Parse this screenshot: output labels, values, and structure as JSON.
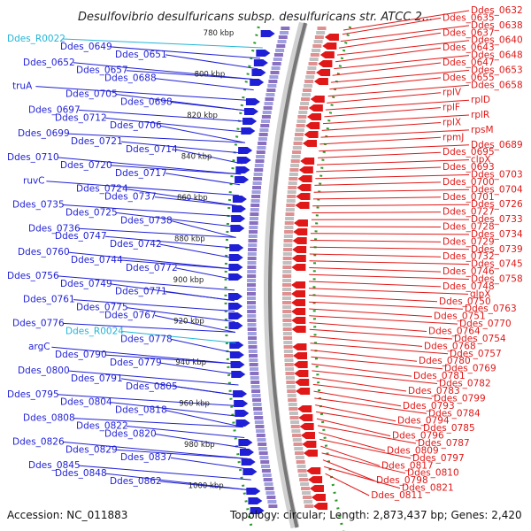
{
  "title": "Desulfovibrio desulfuricans subsp. desulfuricans str. ATCC 2...",
  "footer": {
    "accession": "Accession: NC_011883",
    "summary": "Topology: circular; Length: 2,873,437 bp; Genes: 2,420"
  },
  "colors": {
    "forward": "#1f1fd6",
    "reverse": "#e01818",
    "rna": "#22b5d8",
    "ticks": "#2a9a2a"
  },
  "kbp_ticks": [
    "780 kbp",
    "800 kbp",
    "820 kbp",
    "840 kbp",
    "860 kbp",
    "880 kbp",
    "900 kbp",
    "920 kbp",
    "940 kbp",
    "960 kbp",
    "980 kbp",
    "1000 kbp"
  ],
  "left_labels": [
    {
      "text": "Ddes_R0022",
      "kind": "rna"
    },
    {
      "text": "Ddes_0649",
      "kind": "forward"
    },
    {
      "text": "Ddes_0651",
      "kind": "forward"
    },
    {
      "text": "Ddes_0652",
      "kind": "forward"
    },
    {
      "text": "Ddes_0657",
      "kind": "forward"
    },
    {
      "text": "Ddes_0688",
      "kind": "forward"
    },
    {
      "text": "truA",
      "kind": "forward"
    },
    {
      "text": "Ddes_0705",
      "kind": "forward"
    },
    {
      "text": "Ddes_0698",
      "kind": "forward"
    },
    {
      "text": "Ddes_0697",
      "kind": "forward"
    },
    {
      "text": "Ddes_0712",
      "kind": "forward"
    },
    {
      "text": "Ddes_0706",
      "kind": "forward"
    },
    {
      "text": "Ddes_0699",
      "kind": "forward"
    },
    {
      "text": "Ddes_0721",
      "kind": "forward"
    },
    {
      "text": "Ddes_0714",
      "kind": "forward"
    },
    {
      "text": "Ddes_0710",
      "kind": "forward"
    },
    {
      "text": "Ddes_0720",
      "kind": "forward"
    },
    {
      "text": "Ddes_0717",
      "kind": "forward"
    },
    {
      "text": "ruvC",
      "kind": "forward"
    },
    {
      "text": "Ddes_0724",
      "kind": "forward"
    },
    {
      "text": "Ddes_0737",
      "kind": "forward"
    },
    {
      "text": "Ddes_0735",
      "kind": "forward"
    },
    {
      "text": "Ddes_0725",
      "kind": "forward"
    },
    {
      "text": "Ddes_0738",
      "kind": "forward"
    },
    {
      "text": "Ddes_0736",
      "kind": "forward"
    },
    {
      "text": "Ddes_0747",
      "kind": "forward"
    },
    {
      "text": "Ddes_0742",
      "kind": "forward"
    },
    {
      "text": "Ddes_0760",
      "kind": "forward"
    },
    {
      "text": "Ddes_0744",
      "kind": "forward"
    },
    {
      "text": "Ddes_0772",
      "kind": "forward"
    },
    {
      "text": "Ddes_0756",
      "kind": "forward"
    },
    {
      "text": "Ddes_0749",
      "kind": "forward"
    },
    {
      "text": "Ddes_0771",
      "kind": "forward"
    },
    {
      "text": "Ddes_0761",
      "kind": "forward"
    },
    {
      "text": "Ddes_0775",
      "kind": "forward"
    },
    {
      "text": "Ddes_0767",
      "kind": "forward"
    },
    {
      "text": "Ddes_0776",
      "kind": "forward"
    },
    {
      "text": "Ddes_R0024",
      "kind": "rna"
    },
    {
      "text": "Ddes_0778",
      "kind": "forward"
    },
    {
      "text": "argC",
      "kind": "forward"
    },
    {
      "text": "Ddes_0790",
      "kind": "forward"
    },
    {
      "text": "Ddes_0779",
      "kind": "forward"
    },
    {
      "text": "Ddes_0800",
      "kind": "forward"
    },
    {
      "text": "Ddes_0791",
      "kind": "forward"
    },
    {
      "text": "Ddes_0805",
      "kind": "forward"
    },
    {
      "text": "Ddes_0795",
      "kind": "forward"
    },
    {
      "text": "Ddes_0804",
      "kind": "forward"
    },
    {
      "text": "Ddes_0818",
      "kind": "forward"
    },
    {
      "text": "Ddes_0808",
      "kind": "forward"
    },
    {
      "text": "Ddes_0822",
      "kind": "forward"
    },
    {
      "text": "Ddes_0820",
      "kind": "forward"
    },
    {
      "text": "Ddes_0826",
      "kind": "forward"
    },
    {
      "text": "Ddes_0829",
      "kind": "forward"
    },
    {
      "text": "Ddes_0837",
      "kind": "forward"
    },
    {
      "text": "Ddes_0845",
      "kind": "forward"
    },
    {
      "text": "Ddes_0848",
      "kind": "forward"
    },
    {
      "text": "Ddes_0862",
      "kind": "forward"
    }
  ],
  "right_labels": [
    "Ddes_0632",
    "Ddes_0635",
    "Ddes_0638",
    "Ddes_0637",
    "Ddes_0640",
    "Ddes_0643",
    "Ddes_0648",
    "Ddes_0647",
    "Ddes_0653",
    "Ddes_0655",
    "Ddes_0658",
    "rplV",
    "rplD",
    "rplF",
    "rplR",
    "rplX",
    "rpsM",
    "rpmJ",
    "Ddes_0689",
    "Ddes_0695",
    "clpX",
    "Ddes_0693",
    "Ddes_0703",
    "Ddes_0700",
    "Ddes_0704",
    "Ddes_0701",
    "Ddes_0726",
    "Ddes_0727",
    "Ddes_0733",
    "Ddes_0728",
    "Ddes_0734",
    "Ddes_0729",
    "Ddes_0739",
    "Ddes_0732",
    "Ddes_0745",
    "Ddes_0746",
    "Ddes_0758",
    "Ddes_0748",
    "glpX",
    "Ddes_0750",
    "Ddes_0763",
    "Ddes_0751",
    "Ddes_0770",
    "Ddes_0764",
    "Ddes_0754",
    "Ddes_0768",
    "Ddes_0757",
    "Ddes_0780",
    "Ddes_0769",
    "Ddes_0781",
    "Ddes_0782",
    "Ddes_0783",
    "Ddes_0799",
    "Ddes_0793",
    "Ddes_0784",
    "Ddes_0794",
    "Ddes_0785",
    "Ddes_0796",
    "Ddes_0787",
    "Ddes_0809",
    "Ddes_0797",
    "Ddes_0817",
    "Ddes_0810",
    "Ddes_0798",
    "Ddes_0821",
    "Ddes_0811"
  ]
}
